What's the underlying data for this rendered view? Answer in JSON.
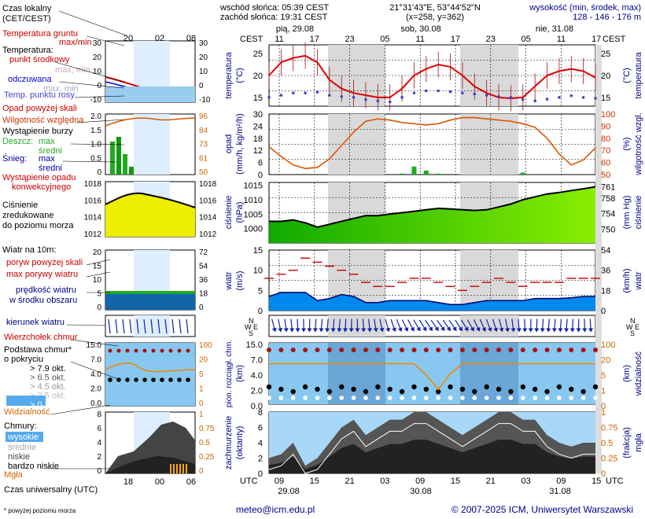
{
  "header": {
    "sunrise": "wschód słońca: 05:39 CEST",
    "sunset": "zachód słońca: 19:31 CEST",
    "coords": "21°31'43\"E, 53°44'52\"N",
    "grid": "(x=258, y=362)",
    "elevation_label": "wysokość (min, środek, max)",
    "elevation_values": "128 - 146 - 176 m",
    "cest": "CEST",
    "utc": "UTC"
  },
  "legend": {
    "local_time": "Czas lokalny",
    "local_time_sub": "(CET/CEST)",
    "local_ticks": [
      "20",
      "02",
      "08"
    ],
    "utc_ticks": [
      "18",
      "00",
      "06"
    ],
    "utc_time": "Czas uniwersalny (UTC)",
    "temp_ground": "Temperatura gruntu",
    "max_min": "max/min",
    "temperature": "Temperatura:",
    "mid_point": "punkt środkowy",
    "max_min_light": "max, min",
    "perceived": "odczuwana",
    "dew_point": "Temp. punktu rosy",
    "precip_over": "Opad powyżej skali",
    "rel_humidity": "Wilgotność względna",
    "storm": "Wystąpienie burzy",
    "rain": "Deszcz:",
    "max": "max",
    "mean": "średni",
    "snow": "Śnieg:",
    "conv1": "Wystąpienie opadu",
    "conv2": "konwekcyjnego",
    "pressure1": "Ciśnienie",
    "pressure2": "zredukowane",
    "pressure3": "do poziomu morza",
    "wind_at": "Wiatr na 10m:",
    "gust_over": "poryw powyżej skali",
    "gust_max": "max porywy wiatru",
    "wind_speed1": "prędkość wiatru",
    "wind_speed2": "w środku obszaru",
    "wind_dir": "kierunek wiatru",
    "cloud_top": "Wierzchołek chmur",
    "cloud_base1": "Podstawa chmur*",
    "cloud_base2": "o pokryciu",
    "okt": [
      "> 7.9 okt.",
      "> 6.5 okt.",
      "> 4.5 okt.",
      "> 2.5 okt.",
      "> 0.1 okt."
    ],
    "visibility": "Widzialność",
    "clouds": "Chmury:",
    "high": "wysokie",
    "middle": "średnie",
    "low": "niskie",
    "very_low": "bardzo niskie",
    "fog": "Mgła",
    "footnote": "* powyżej poziomu morza",
    "mini_temp_ticks_left": [
      "30",
      "20",
      "10",
      "0",
      "-10"
    ],
    "mini_temp_ticks_right": [
      "30",
      "20",
      "10",
      "0",
      "-10"
    ],
    "mini_precip_ticks_left": [
      "2.0",
      "1.5",
      "1.0",
      "0.5",
      "0"
    ],
    "mini_precip_ticks_right": [
      "96",
      "84",
      "73",
      "61",
      "50"
    ],
    "mini_pres_ticks_left": [
      "1018",
      "1016",
      "1014",
      "1012"
    ],
    "mini_pres_ticks_right": [
      "1018",
      "1016",
      "1014",
      "1012"
    ],
    "mini_wind_ticks_left": [
      "20",
      "15",
      "10",
      "5",
      "0"
    ],
    "mini_wind_ticks_right": [
      "72",
      "54",
      "36",
      "18",
      "0"
    ],
    "mini_cloud_ticks_left": [
      "15.0",
      "7.0",
      "4.0",
      "2.0",
      "0.0"
    ],
    "mini_cloud_ticks_right": [
      "100",
      "20",
      "5",
      "1",
      "0"
    ],
    "mini_cover_ticks_left": [
      "8",
      "6",
      "4",
      "2",
      "0"
    ],
    "mini_cover_ticks_right": [
      "1",
      "0.75",
      "0.5",
      "0.25",
      "0"
    ]
  },
  "days": {
    "top": [
      "pią, 29.08",
      "sob, 30.08",
      "nie, 31.08"
    ],
    "bottom": [
      "29.08",
      "30.08",
      "31.08"
    ]
  },
  "axes": {
    "temp_left": "temperatura",
    "temp_unit": "(°C)",
    "precip_left1": "opad",
    "precip_left2": "(mm/h, kg/m²/h)",
    "precip_right1": "(%)",
    "precip_right2": "wilgotność wzgl.",
    "pres_left1": "ciśnienie",
    "pres_left2": "(hPa)",
    "pres_right1": "(mm Hg)",
    "pres_right2": "ciśnienie",
    "wind_left1": "wiatr",
    "wind_left2": "(m/s)",
    "wind_right1": "(km/h)",
    "wind_right2": "wiatr",
    "cloud_left1": "pion. rozciągł. chm.",
    "cloud_left2": "(km)",
    "cloud_right1": "(km)",
    "cloud_right2": "widzialność",
    "cover_left1": "zachmurzenie",
    "cover_left2": "(oktanty)",
    "cover_right1": "(frakcja)",
    "cover_right2": "mgła",
    "compass": [
      "N",
      "W",
      "S",
      "E"
    ]
  },
  "footer": {
    "email": "meteo@icm.edu.pl",
    "copyright": "© 2007-2025 ICM, Uniwersytet Warszawski"
  },
  "colors": {
    "temp": "#dd0000",
    "dew": "#4444cc",
    "humidity": "#dd5500",
    "rain": "#22aa22",
    "pressure_fill": "#88ee00",
    "wind_fill": "#0088ee",
    "night": "#d9d9d9",
    "day_band": "#ddeeff"
  },
  "chart_data": [
    {
      "type": "line",
      "title": "temperatura",
      "ylabel": "(°C)",
      "ylim": [
        13,
        27
      ],
      "x_local_ticks": [
        "11",
        "17",
        "23",
        "05",
        "11",
        "17",
        "23",
        "05",
        "11",
        "17"
      ],
      "series": [
        {
          "name": "temperatura",
          "values": [
            20,
            23,
            24,
            24.5,
            23,
            19,
            17,
            16,
            15.5,
            15,
            15,
            17,
            20,
            21.5,
            22.5,
            22,
            20,
            17.5,
            16,
            15,
            14.8,
            15,
            17.5,
            20,
            21,
            21.5,
            21,
            19.5
          ]
        },
        {
          "name": "punkt rosy",
          "values": [
            15,
            15.5,
            16,
            16,
            16.2,
            15.5,
            15.2,
            15,
            14.5,
            14.2,
            14,
            15,
            16,
            16.5,
            16.5,
            16.3,
            16,
            15.8,
            15.5,
            15.2,
            15,
            14.5,
            14.2,
            14.6,
            15,
            15.4,
            15,
            14.8
          ]
        }
      ]
    },
    {
      "type": "line",
      "title": "opad / wilgotność wzgl.",
      "ylim": [
        0,
        30
      ],
      "y2lim": [
        50,
        100
      ],
      "series": [
        {
          "name": "wilgotność wzgl.",
          "values": [
            73,
            65,
            58,
            55,
            56,
            63,
            74,
            85,
            94,
            96,
            95,
            93,
            92,
            91,
            92,
            95,
            97,
            97,
            96,
            95,
            94,
            92,
            89,
            80,
            67,
            58,
            62,
            72
          ]
        },
        {
          "name": "opad",
          "values": [
            0,
            0,
            0,
            0,
            0,
            0,
            0,
            0,
            0,
            0,
            0,
            0.5,
            4,
            2,
            0.5,
            0,
            0,
            0,
            0,
            0,
            0,
            1,
            0,
            0,
            0,
            0,
            0,
            0
          ]
        }
      ]
    },
    {
      "type": "area",
      "title": "ciśnienie",
      "ylabel": "(hPa)",
      "ylim": [
        995,
        1016
      ],
      "series": [
        {
          "name": "ciśnienie",
          "values": [
            1002.5,
            1002.5,
            1003,
            1002,
            1000.5,
            1001.5,
            1002.5,
            1003.5,
            1004.5,
            1004.5,
            1005,
            1005.5,
            1006,
            1006.5,
            1007,
            1006.8,
            1006.5,
            1006.3,
            1006.5,
            1007.5,
            1008.5,
            1010,
            1011,
            1012,
            1012.5,
            1013.2,
            1013.8,
            1014.5
          ]
        }
      ]
    },
    {
      "type": "area",
      "title": "wiatr",
      "ylabel": "(m/s)",
      "ylim": [
        0,
        15
      ],
      "series": [
        {
          "name": "prędkość wiatru",
          "values": [
            3.5,
            4.5,
            4.5,
            4.5,
            2.5,
            3,
            4,
            3.5,
            2,
            2,
            2.5,
            2.5,
            2.5,
            2.5,
            2,
            1.5,
            1.5,
            2,
            2.5,
            2.5,
            2.5,
            2.5,
            3,
            3,
            3,
            3.2,
            3.5,
            3.5
          ]
        },
        {
          "name": "max porywy wiatru",
          "values": [
            8,
            9,
            10,
            13,
            12,
            11,
            10,
            9,
            7,
            6,
            6,
            7,
            8,
            8,
            7,
            6,
            5,
            6,
            7,
            8,
            7,
            6,
            7,
            7,
            7,
            8,
            8,
            8
          ]
        }
      ]
    },
    {
      "type": "line",
      "title": "widzialność",
      "ylim": [
        0,
        100
      ],
      "series": [
        {
          "name": "widzialność",
          "values": [
            20,
            20,
            20,
            20,
            20,
            20,
            20,
            20,
            20,
            20,
            20,
            20,
            20,
            8,
            2,
            9,
            20,
            20,
            20,
            20,
            20,
            20,
            20,
            20,
            20,
            20,
            20,
            20
          ]
        }
      ]
    },
    {
      "type": "area",
      "title": "zachmurzenie",
      "ylabel": "(oktanty)",
      "ylim": [
        0,
        8
      ],
      "series": [
        {
          "name": "zachmurzenie",
          "values": [
            2,
            2.5,
            4,
            1,
            2,
            4,
            6,
            7,
            5,
            6,
            7,
            7,
            8,
            8,
            7,
            6,
            5,
            6,
            7,
            8,
            8,
            7,
            7,
            5,
            4,
            3.5,
            4,
            4
          ]
        }
      ]
    }
  ]
}
